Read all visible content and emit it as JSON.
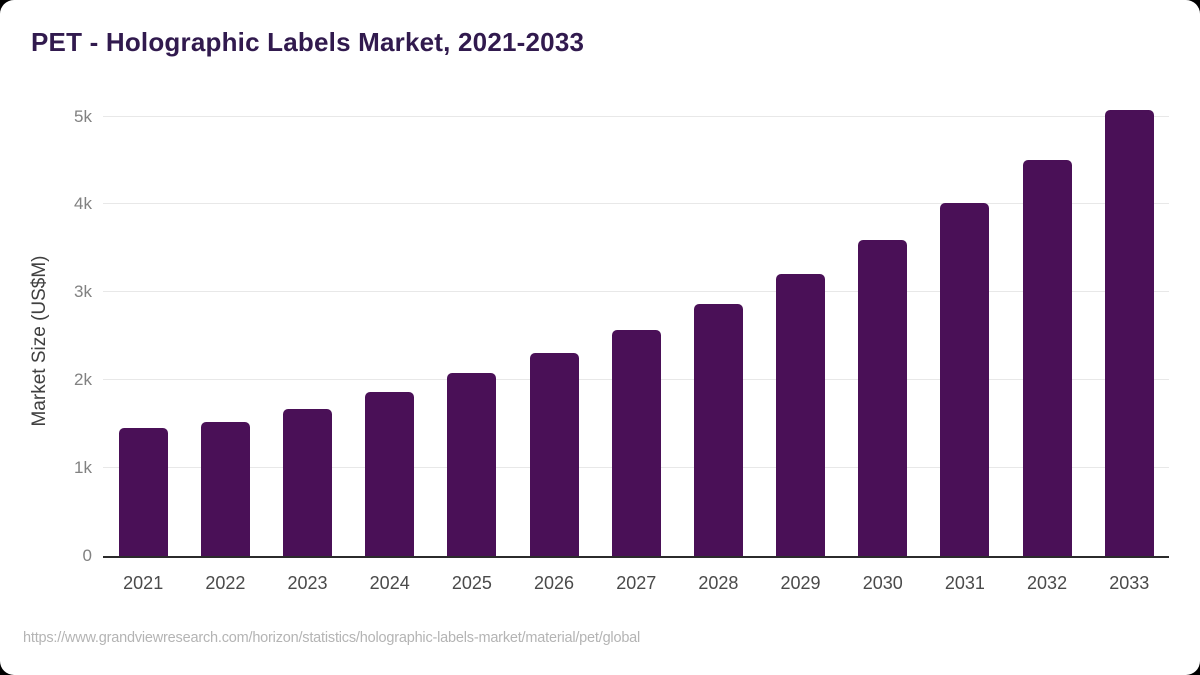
{
  "page": {
    "title": "PET - Holographic Labels Market, 2021-2033",
    "source_url": "https://www.grandviewresearch.com/horizon/statistics/holographic-labels-market/material/pet/global"
  },
  "chart_data": {
    "type": "bar",
    "title": "PET - Holographic Labels Market, 2021-2033",
    "categories": [
      "2021",
      "2022",
      "2023",
      "2024",
      "2025",
      "2026",
      "2027",
      "2028",
      "2029",
      "2030",
      "2031",
      "2032",
      "2033"
    ],
    "values": [
      1455,
      1530,
      1675,
      1865,
      2085,
      2310,
      2575,
      2870,
      3210,
      3600,
      4015,
      4510,
      5070
    ],
    "xlabel": "",
    "ylabel": "Market Size (US$M)",
    "ytick_labels": [
      "0",
      "1k",
      "2k",
      "3k",
      "4k",
      "5k"
    ],
    "ytick_values": [
      0,
      1000,
      2000,
      3000,
      4000,
      5000
    ],
    "ylim": [
      0,
      5300
    ],
    "grid": true,
    "legend": false,
    "colors": {
      "bar": "#4a1057",
      "title": "#311a4e",
      "gridline": "#e8e8e8",
      "baseline": "#2b2b2b",
      "y_tick": "#818181",
      "x_tick": "#4a4a4a",
      "axis_title": "#404040",
      "source": "#b4b4b4",
      "card_background": "#ffffff"
    }
  }
}
